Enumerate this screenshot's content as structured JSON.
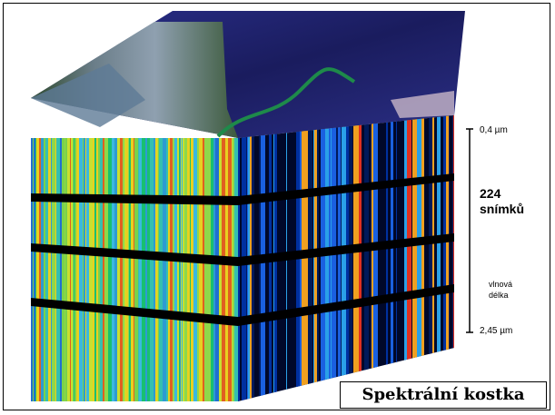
{
  "title": "Spektrální kostka",
  "wavelength_axis": {
    "top_label": "0,4 µm",
    "count_number": "224",
    "count_word": "snímků",
    "axis_word_1": "vlnová",
    "axis_word_2": "délka",
    "bottom_label": "2,45 µm"
  },
  "colors": {
    "background": "#ffffff",
    "cube_dark": "#000814",
    "water": "#1c1f6e",
    "land": "#4a5a6a"
  }
}
